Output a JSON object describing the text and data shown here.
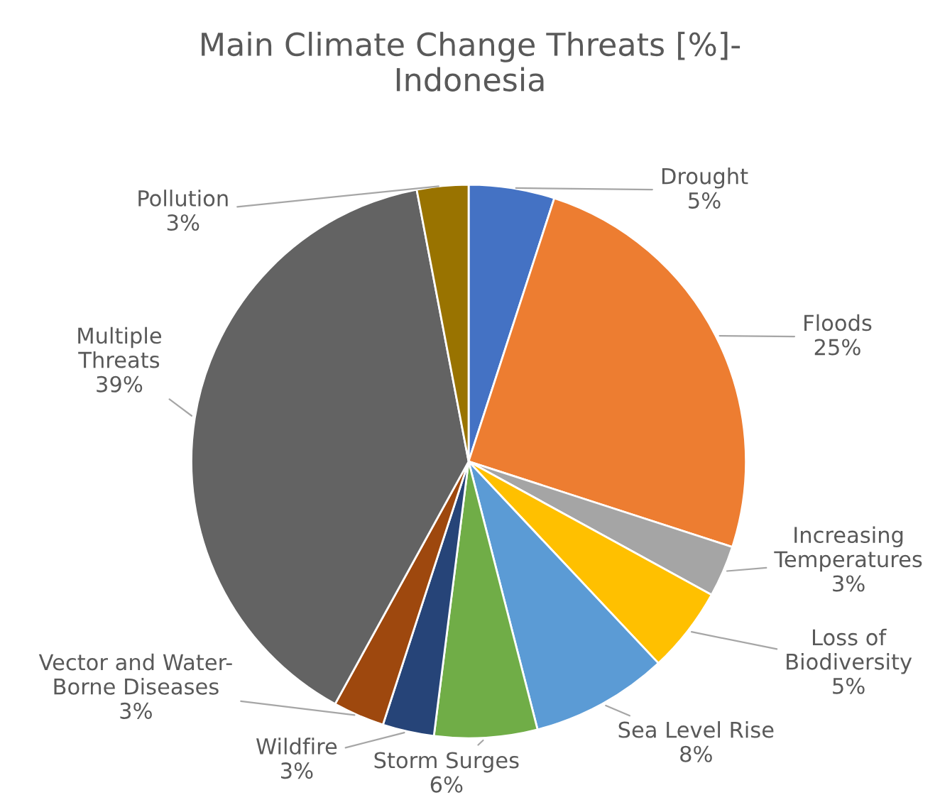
{
  "chart_data": {
    "type": "pie",
    "title": "Main Climate Change Threats [%]-\nIndonesia",
    "categories": [
      "Drought",
      "Floods",
      "Increasing\nTemperatures",
      "Loss of\nBiodiversity",
      "Sea Level Rise",
      "Storm Surges",
      "Wildfire",
      "Vector and Water-\nBorne Diseases",
      "Multiple\nThreats",
      "Pollution"
    ],
    "values": [
      5,
      25,
      3,
      5,
      8,
      6,
      3,
      3,
      39,
      3
    ],
    "value_labels": [
      "5%",
      "25%",
      "3%",
      "5%",
      "8%",
      "6%",
      "3%",
      "3%",
      "39%",
      "3%"
    ],
    "colors": [
      "#4472c4",
      "#ed7d31",
      "#a5a5a5",
      "#ffc000",
      "#5b9bd5",
      "#70ad47",
      "#264478",
      "#9e480e",
      "#636363",
      "#997300"
    ],
    "legend": false
  }
}
